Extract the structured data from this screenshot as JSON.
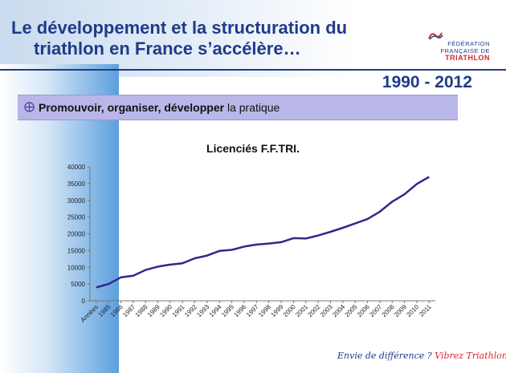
{
  "slide": {
    "title_line1": "Le développement et la structuration du",
    "title_line2": "triathlon en France s’accélère…",
    "period": "1990 - 2012",
    "banner": {
      "bold": "Promouvoir, organiser, développer",
      "rest": " la pratique"
    },
    "footer": {
      "part1": "Envie de différence ? ",
      "part2": "Vibrez Triathlon !"
    },
    "logo": {
      "line1": "FÉDÉRATION",
      "line2": "FRANÇAISE DE",
      "line3": "TRIATHLON"
    },
    "colors": {
      "title": "#1f3b8a",
      "series": "#2e2a8a",
      "banner": "#b9b6e8",
      "accent": "#d8272e"
    }
  },
  "chart_data": {
    "type": "line",
    "title": "Licenciés F.F.TRI.",
    "categories": [
      "Années",
      "1985",
      "1986",
      "1987",
      "1988",
      "1989",
      "1990",
      "1991",
      "1992",
      "1993",
      "1994",
      "1995",
      "1996",
      "1997",
      "1998",
      "1999",
      "2000",
      "2001",
      "2002",
      "2003",
      "2004",
      "2005",
      "2006",
      "2007",
      "2008",
      "2009",
      "2010",
      "2011"
    ],
    "series": [
      {
        "values": [
          4000,
          5000,
          7000,
          7500,
          9200,
          10200,
          10800,
          11200,
          12700,
          13500,
          14900,
          15200,
          16200,
          16800,
          17100,
          17500,
          18700,
          18600,
          19500,
          20600,
          21800,
          23100,
          24400,
          26600,
          29600,
          31800,
          34900,
          37000
        ]
      }
    ],
    "ylim": [
      0,
      40000
    ],
    "yticks": [
      0,
      5000,
      10000,
      15000,
      20000,
      25000,
      30000,
      35000,
      40000
    ],
    "grid": false,
    "legend": "none"
  }
}
